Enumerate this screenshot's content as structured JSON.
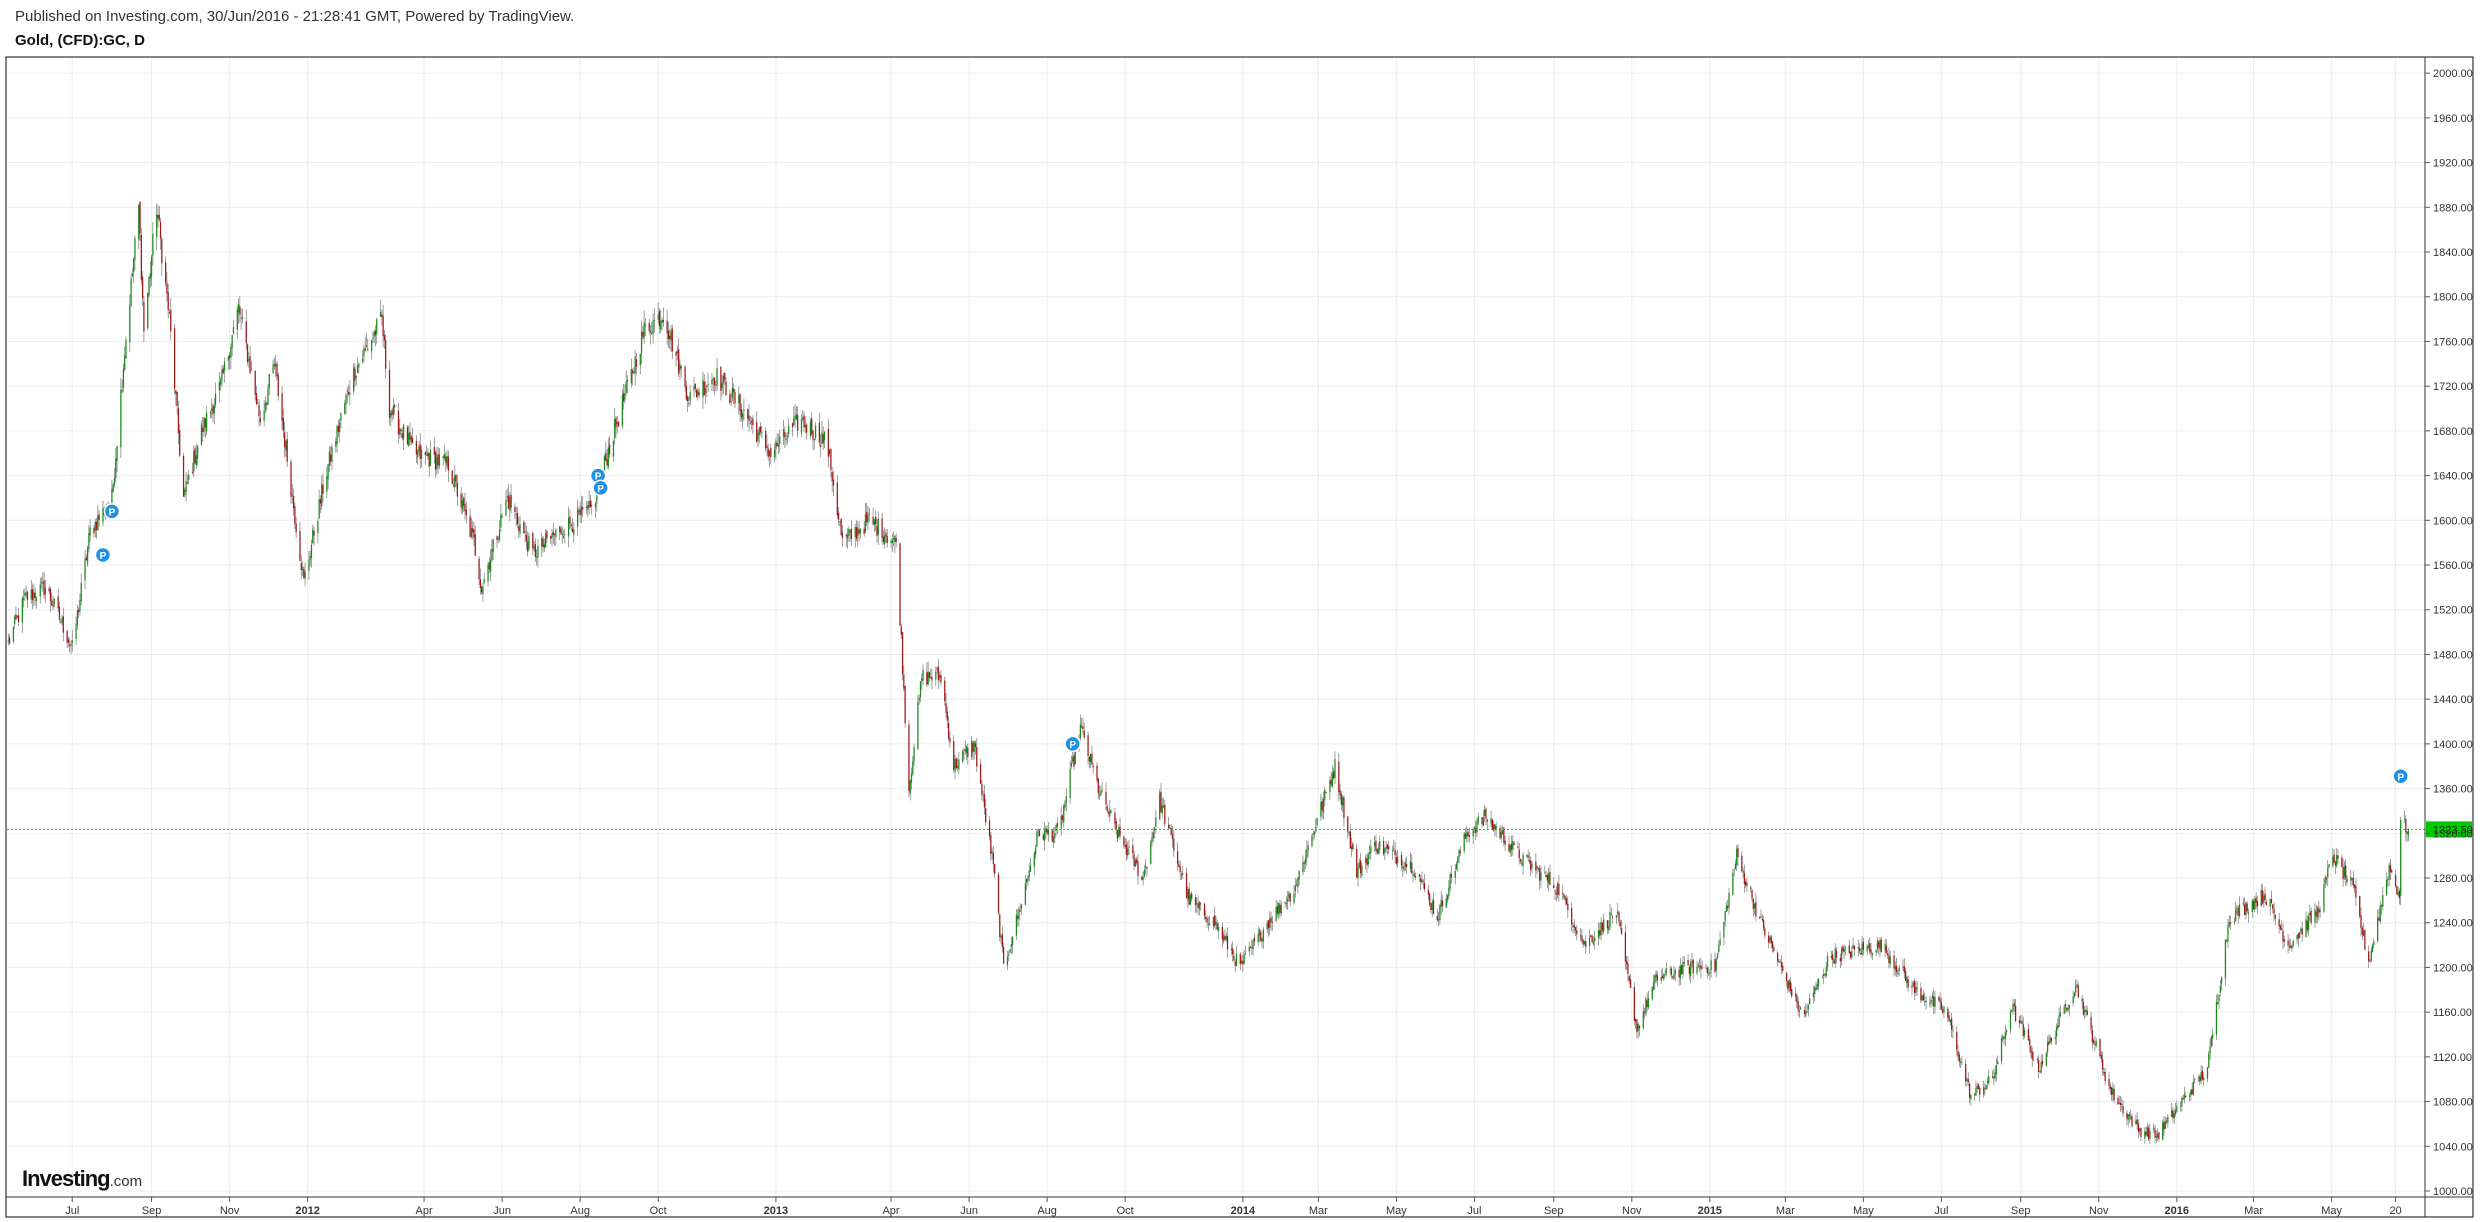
{
  "header": {
    "published": "Published on Investing.com, 30/Jun/2016 - 21:28:41 GMT, Powered by TradingView.",
    "symbol": "Gold, (CFD):GC, D"
  },
  "logo": {
    "brand": "Investing",
    "suffix": ".com"
  },
  "colors": {
    "up": "#1a8a1a",
    "down": "#a01818",
    "last_price_line": "#00c800",
    "last_price_bg": "#00c800",
    "marker": "#1e90e6",
    "grid": "#ececec"
  },
  "chart_data": {
    "type": "candlestick",
    "title": "Gold, (CFD):GC, D",
    "ylim": [
      1000,
      2010
    ],
    "y_ticks": [
      "1000.00",
      "1040.00",
      "1080.00",
      "1120.00",
      "1160.00",
      "1200.00",
      "1240.00",
      "1280.00",
      "1320.00",
      "1360.00",
      "1400.00",
      "1440.00",
      "1480.00",
      "1520.00",
      "1560.00",
      "1600.00",
      "1640.00",
      "1680.00",
      "1720.00",
      "1760.00",
      "1800.00",
      "1840.00",
      "1880.00",
      "1920.00",
      "1960.00",
      "2000.00"
    ],
    "x_ticks": [
      {
        "label": "Jul",
        "date": "2011-07-01",
        "bold": false
      },
      {
        "label": "Sep",
        "date": "2011-09-01",
        "bold": false
      },
      {
        "label": "Nov",
        "date": "2011-11-01",
        "bold": false
      },
      {
        "label": "2012",
        "date": "2012-01-01",
        "bold": true
      },
      {
        "label": "Apr",
        "date": "2012-04-01",
        "bold": false
      },
      {
        "label": "Jun",
        "date": "2012-06-01",
        "bold": false
      },
      {
        "label": "Aug",
        "date": "2012-08-01",
        "bold": false
      },
      {
        "label": "Oct",
        "date": "2012-10-01",
        "bold": false
      },
      {
        "label": "2013",
        "date": "2013-01-01",
        "bold": true
      },
      {
        "label": "Apr",
        "date": "2013-04-01",
        "bold": false
      },
      {
        "label": "Jun",
        "date": "2013-06-01",
        "bold": false
      },
      {
        "label": "Aug",
        "date": "2013-08-01",
        "bold": false
      },
      {
        "label": "Oct",
        "date": "2013-10-01",
        "bold": false
      },
      {
        "label": "2014",
        "date": "2014-01-01",
        "bold": true
      },
      {
        "label": "Mar",
        "date": "2014-03-01",
        "bold": false
      },
      {
        "label": "May",
        "date": "2014-05-01",
        "bold": false
      },
      {
        "label": "Jul",
        "date": "2014-07-01",
        "bold": false
      },
      {
        "label": "Sep",
        "date": "2014-09-01",
        "bold": false
      },
      {
        "label": "Nov",
        "date": "2014-11-01",
        "bold": false
      },
      {
        "label": "2015",
        "date": "2015-01-01",
        "bold": true
      },
      {
        "label": "Mar",
        "date": "2015-03-01",
        "bold": false
      },
      {
        "label": "May",
        "date": "2015-05-01",
        "bold": false
      },
      {
        "label": "Jul",
        "date": "2015-07-01",
        "bold": false
      },
      {
        "label": "Sep",
        "date": "2015-09-01",
        "bold": false
      },
      {
        "label": "Nov",
        "date": "2015-11-01",
        "bold": false
      },
      {
        "label": "2016",
        "date": "2016-01-01",
        "bold": true
      },
      {
        "label": "Mar",
        "date": "2016-03-01",
        "bold": false
      },
      {
        "label": "May",
        "date": "2016-05-01",
        "bold": false
      },
      {
        "label": "20",
        "date": "2016-06-20",
        "bold": false
      }
    ],
    "x_range": [
      "2011-05-11",
      "2016-07-13"
    ],
    "last_price": 1323.5,
    "last_price_label": "1323.50",
    "close_path": [
      {
        "date": "2011-05-12",
        "close": 1490
      },
      {
        "date": "2011-05-25",
        "close": 1530
      },
      {
        "date": "2011-06-10",
        "close": 1540
      },
      {
        "date": "2011-06-24",
        "close": 1505
      },
      {
        "date": "2011-07-01",
        "close": 1485
      },
      {
        "date": "2011-07-15",
        "close": 1590
      },
      {
        "date": "2011-08-01",
        "close": 1620
      },
      {
        "date": "2011-08-10",
        "close": 1740
      },
      {
        "date": "2011-08-22",
        "close": 1880
      },
      {
        "date": "2011-08-26",
        "close": 1770
      },
      {
        "date": "2011-09-05",
        "close": 1880
      },
      {
        "date": "2011-09-15",
        "close": 1780
      },
      {
        "date": "2011-09-26",
        "close": 1620
      },
      {
        "date": "2011-10-10",
        "close": 1680
      },
      {
        "date": "2011-10-25",
        "close": 1720
      },
      {
        "date": "2011-11-08",
        "close": 1790
      },
      {
        "date": "2011-11-25",
        "close": 1690
      },
      {
        "date": "2011-12-06",
        "close": 1740
      },
      {
        "date": "2011-12-29",
        "close": 1545
      },
      {
        "date": "2012-01-15",
        "close": 1640
      },
      {
        "date": "2012-02-05",
        "close": 1730
      },
      {
        "date": "2012-02-28",
        "close": 1780
      },
      {
        "date": "2012-03-05",
        "close": 1700
      },
      {
        "date": "2012-03-25",
        "close": 1660
      },
      {
        "date": "2012-04-20",
        "close": 1650
      },
      {
        "date": "2012-05-10",
        "close": 1580
      },
      {
        "date": "2012-05-16",
        "close": 1540
      },
      {
        "date": "2012-06-05",
        "close": 1620
      },
      {
        "date": "2012-06-25",
        "close": 1570
      },
      {
        "date": "2012-07-15",
        "close": 1590
      },
      {
        "date": "2012-08-10",
        "close": 1610
      },
      {
        "date": "2012-08-25",
        "close": 1670
      },
      {
        "date": "2012-09-10",
        "close": 1730
      },
      {
        "date": "2012-09-20",
        "close": 1770
      },
      {
        "date": "2012-10-05",
        "close": 1785
      },
      {
        "date": "2012-10-25",
        "close": 1710
      },
      {
        "date": "2012-11-15",
        "close": 1730
      },
      {
        "date": "2012-12-05",
        "close": 1700
      },
      {
        "date": "2012-12-28",
        "close": 1660
      },
      {
        "date": "2013-01-20",
        "close": 1690
      },
      {
        "date": "2013-02-10",
        "close": 1670
      },
      {
        "date": "2013-02-22",
        "close": 1580
      },
      {
        "date": "2013-03-15",
        "close": 1600
      },
      {
        "date": "2013-04-05",
        "close": 1580
      },
      {
        "date": "2013-04-15",
        "close": 1360
      },
      {
        "date": "2013-04-25",
        "close": 1460
      },
      {
        "date": "2013-05-10",
        "close": 1460
      },
      {
        "date": "2013-05-20",
        "close": 1380
      },
      {
        "date": "2013-06-05",
        "close": 1400
      },
      {
        "date": "2013-06-20",
        "close": 1290
      },
      {
        "date": "2013-06-28",
        "close": 1200
      },
      {
        "date": "2013-07-10",
        "close": 1250
      },
      {
        "date": "2013-07-25",
        "close": 1320
      },
      {
        "date": "2013-08-10",
        "close": 1320
      },
      {
        "date": "2013-08-27",
        "close": 1415
      },
      {
        "date": "2013-09-10",
        "close": 1360
      },
      {
        "date": "2013-09-25",
        "close": 1320
      },
      {
        "date": "2013-10-15",
        "close": 1280
      },
      {
        "date": "2013-10-28",
        "close": 1350
      },
      {
        "date": "2013-11-20",
        "close": 1260
      },
      {
        "date": "2013-12-10",
        "close": 1240
      },
      {
        "date": "2013-12-30",
        "close": 1200
      },
      {
        "date": "2014-01-20",
        "close": 1240
      },
      {
        "date": "2014-02-10",
        "close": 1270
      },
      {
        "date": "2014-03-14",
        "close": 1380
      },
      {
        "date": "2014-03-31",
        "close": 1285
      },
      {
        "date": "2014-04-15",
        "close": 1310
      },
      {
        "date": "2014-05-15",
        "close": 1290
      },
      {
        "date": "2014-06-02",
        "close": 1245
      },
      {
        "date": "2014-06-25",
        "close": 1320
      },
      {
        "date": "2014-07-10",
        "close": 1335
      },
      {
        "date": "2014-08-05",
        "close": 1300
      },
      {
        "date": "2014-09-05",
        "close": 1270
      },
      {
        "date": "2014-09-25",
        "close": 1220
      },
      {
        "date": "2014-10-20",
        "close": 1250
      },
      {
        "date": "2014-11-05",
        "close": 1145
      },
      {
        "date": "2014-11-20",
        "close": 1190
      },
      {
        "date": "2014-12-15",
        "close": 1200
      },
      {
        "date": "2015-01-05",
        "close": 1200
      },
      {
        "date": "2015-01-22",
        "close": 1300
      },
      {
        "date": "2015-02-10",
        "close": 1240
      },
      {
        "date": "2015-03-15",
        "close": 1155
      },
      {
        "date": "2015-04-05",
        "close": 1210
      },
      {
        "date": "2015-05-15",
        "close": 1220
      },
      {
        "date": "2015-06-10",
        "close": 1180
      },
      {
        "date": "2015-07-05",
        "close": 1160
      },
      {
        "date": "2015-07-24",
        "close": 1085
      },
      {
        "date": "2015-08-10",
        "close": 1100
      },
      {
        "date": "2015-08-25",
        "close": 1165
      },
      {
        "date": "2015-09-15",
        "close": 1110
      },
      {
        "date": "2015-10-14",
        "close": 1185
      },
      {
        "date": "2015-11-10",
        "close": 1090
      },
      {
        "date": "2015-12-02",
        "close": 1055
      },
      {
        "date": "2015-12-17",
        "close": 1050
      },
      {
        "date": "2016-01-05",
        "close": 1080
      },
      {
        "date": "2016-01-25",
        "close": 1110
      },
      {
        "date": "2016-02-11",
        "close": 1245
      },
      {
        "date": "2016-03-10",
        "close": 1265
      },
      {
        "date": "2016-03-28",
        "close": 1220
      },
      {
        "date": "2016-04-20",
        "close": 1250
      },
      {
        "date": "2016-05-02",
        "close": 1300
      },
      {
        "date": "2016-05-18",
        "close": 1270
      },
      {
        "date": "2016-05-30",
        "close": 1205
      },
      {
        "date": "2016-06-15",
        "close": 1290
      },
      {
        "date": "2016-06-23",
        "close": 1265
      },
      {
        "date": "2016-06-24",
        "close": 1330
      },
      {
        "date": "2016-06-30",
        "close": 1323.5
      }
    ],
    "markers": [
      {
        "label": "P",
        "date": "2011-07-25",
        "price": 1569
      },
      {
        "label": "P",
        "date": "2011-08-01",
        "price": 1608
      },
      {
        "label": "P",
        "date": "2012-08-15",
        "price": 1640
      },
      {
        "label": "P",
        "date": "2012-08-17",
        "price": 1629
      },
      {
        "label": "P",
        "date": "2013-08-21",
        "price": 1400
      },
      {
        "label": "P",
        "date": "2016-06-24",
        "price": 1371
      }
    ]
  }
}
